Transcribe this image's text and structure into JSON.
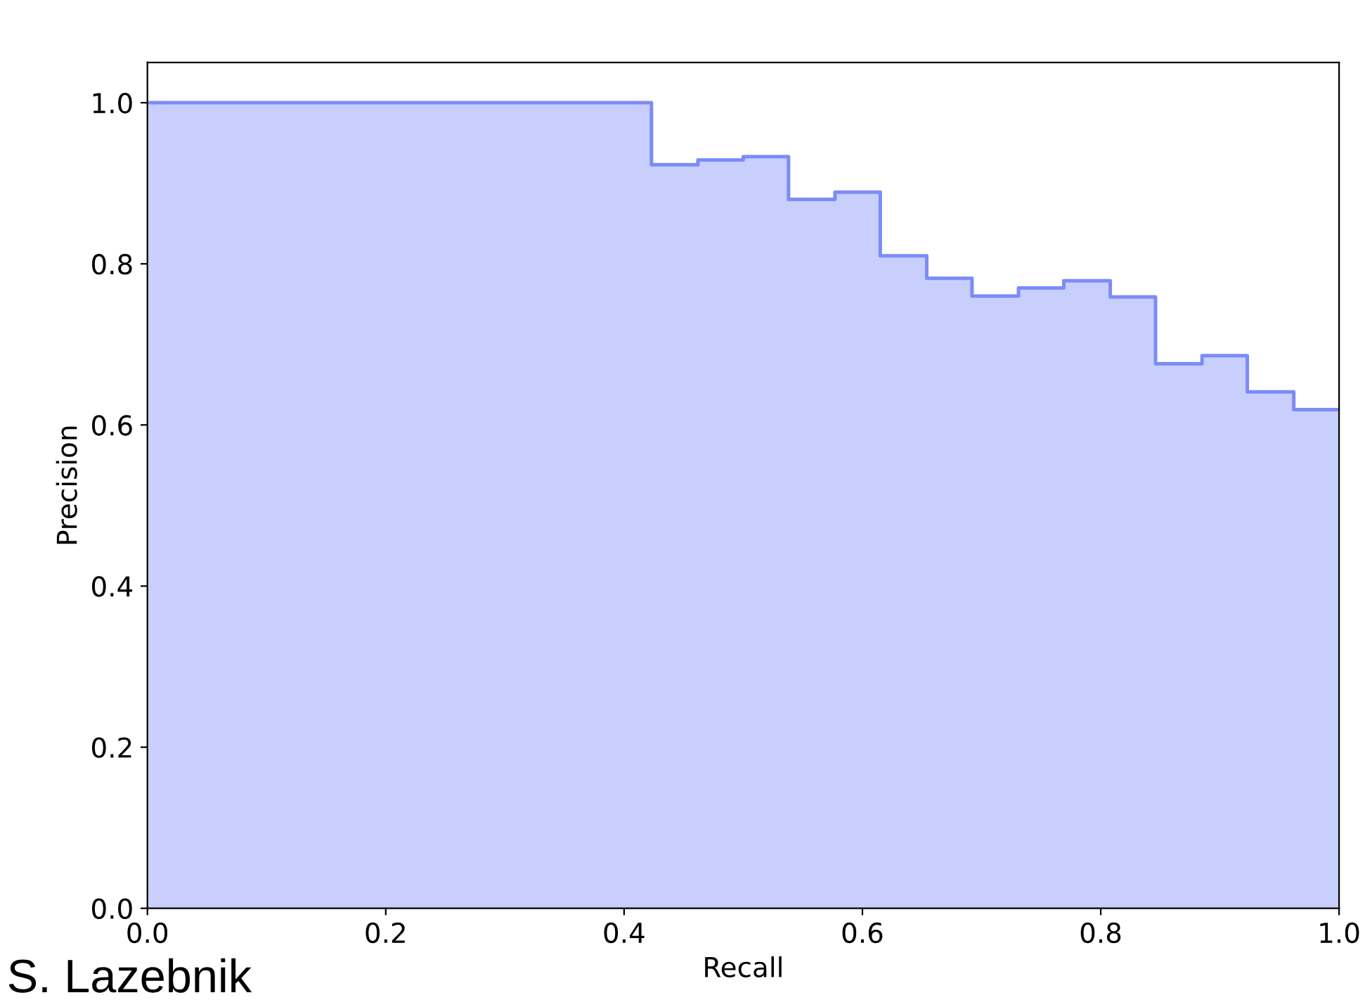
{
  "chart_data": {
    "type": "step",
    "xlabel": "Recall",
    "ylabel": "Precision",
    "x": [
      0.0,
      0.423,
      0.462,
      0.5,
      0.538,
      0.577,
      0.615,
      0.654,
      0.692,
      0.731,
      0.769,
      0.808,
      0.846,
      0.885,
      0.923,
      0.962,
      1.0
    ],
    "series": [
      {
        "color": "#7b8cf7",
        "values": [
          1.0,
          0.923,
          0.929,
          0.933,
          0.88,
          0.889,
          0.81,
          0.782,
          0.76,
          0.77,
          0.779,
          0.759,
          0.676,
          0.686,
          0.641,
          0.619,
          0.619
        ]
      }
    ],
    "xlim": [
      0.0,
      1.0
    ],
    "ylim": [
      0.0,
      1.05
    ],
    "xticks": [
      {
        "value": 0,
        "label": "0.0"
      },
      0.2,
      0.4,
      0.6,
      0.8,
      {
        "value": 1,
        "label": "1.0"
      }
    ],
    "yticks": [
      {
        "value": 0,
        "label": "0.0"
      },
      0.2,
      0.4,
      0.6,
      0.8,
      {
        "value": 1,
        "label": "1.0"
      }
    ],
    "annotations": [
      "S. Lazebnik"
    ]
  }
}
